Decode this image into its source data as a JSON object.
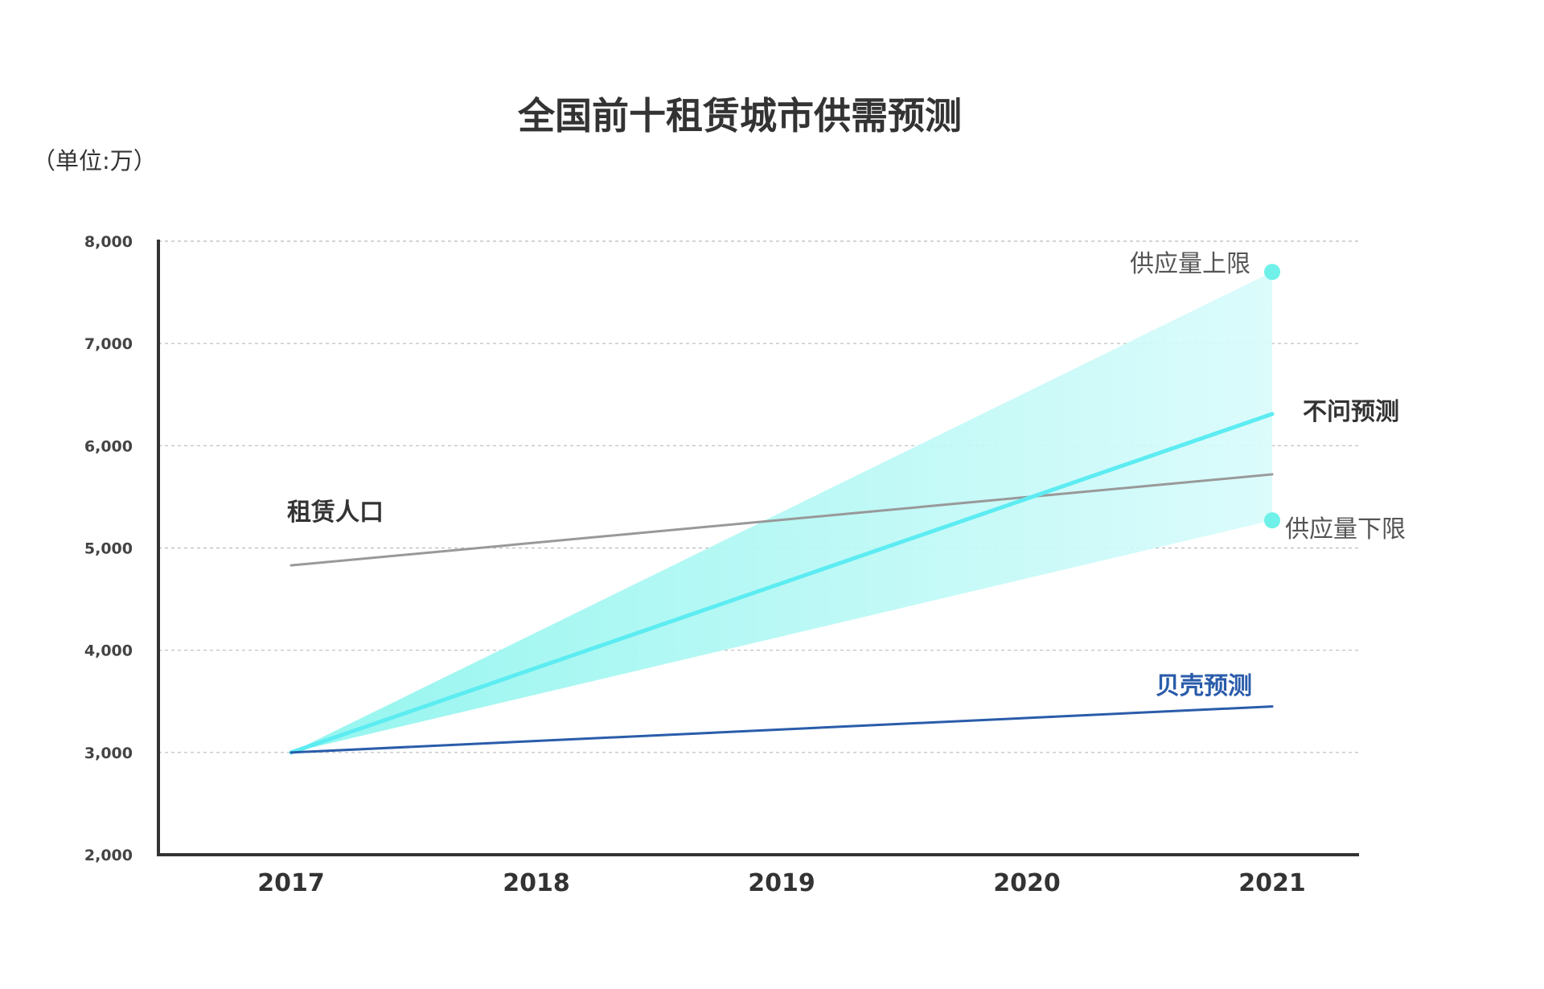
{
  "chart_data": {
    "type": "line",
    "title": "全国前十租赁城市供需预测",
    "unit_label": "（单位:万）",
    "x": [
      "2017",
      "2018",
      "2019",
      "2020",
      "2021"
    ],
    "ylim": [
      2000,
      8000
    ],
    "yticks": [
      {
        "value": 2000,
        "label": "2,000"
      },
      {
        "value": 3000,
        "label": "3,000"
      },
      {
        "value": 4000,
        "label": "4,000"
      },
      {
        "value": 5000,
        "label": "5,000"
      },
      {
        "value": 6000,
        "label": "6,000"
      },
      {
        "value": 7000,
        "label": "7,000"
      },
      {
        "value": 8000,
        "label": "8,000"
      }
    ],
    "grid": true,
    "band": {
      "upper": [
        3000,
        null,
        null,
        null,
        7700
      ],
      "lower": [
        3000,
        null,
        null,
        null,
        5270
      ],
      "color": "#7ef2ee",
      "upper_label": "供应量上限",
      "lower_label": "供应量下限"
    },
    "series": [
      {
        "name": "租赁人口",
        "values": [
          4830,
          null,
          null,
          null,
          5720
        ],
        "color": "#999999"
      },
      {
        "name": "不问预测",
        "values": [
          3000,
          null,
          null,
          null,
          6310
        ],
        "color": "#5cecf2"
      },
      {
        "name": "贝壳预测",
        "values": [
          3000,
          null,
          null,
          null,
          3450
        ],
        "color": "#2a5caa"
      }
    ]
  }
}
